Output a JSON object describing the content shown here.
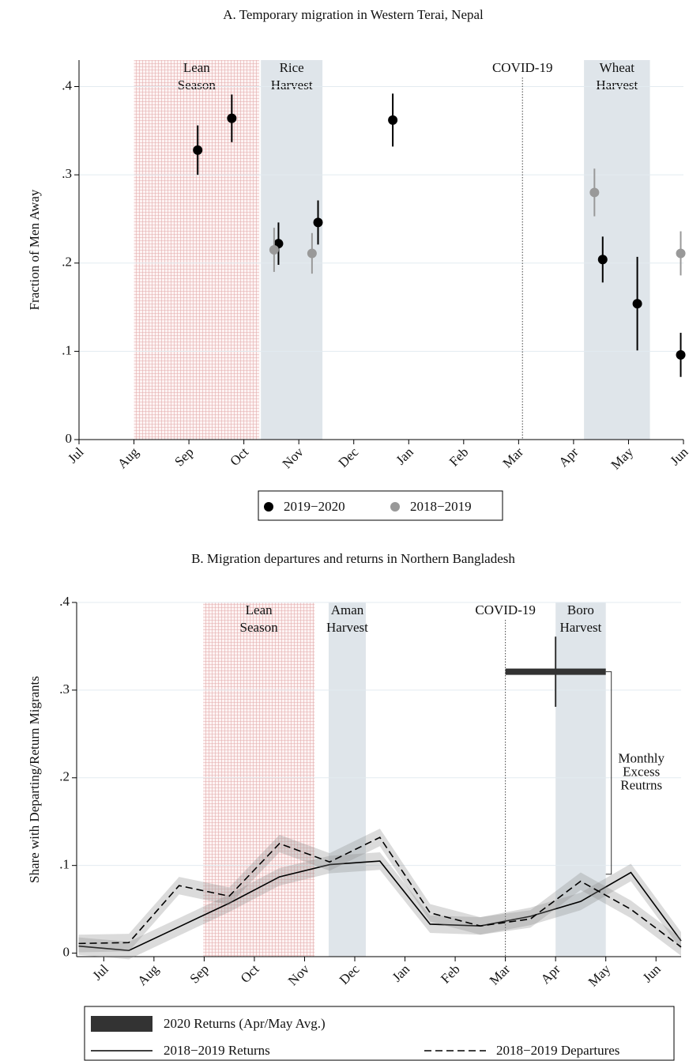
{
  "chart_data": [
    {
      "type": "scatter",
      "title": "A. Temporary migration in Western Terai, Nepal",
      "ylabel": "Fraction of Men Away",
      "xlim": [
        0,
        11
      ],
      "ylim": [
        0,
        0.43
      ],
      "xticks": [
        {
          "value": 0,
          "label": "Jul"
        },
        {
          "value": 1,
          "label": "Aug"
        },
        {
          "value": 2,
          "label": "Sep"
        },
        {
          "value": 3,
          "label": "Oct"
        },
        {
          "value": 4,
          "label": "Nov"
        },
        {
          "value": 5,
          "label": "Dec"
        },
        {
          "value": 6,
          "label": "Jan"
        },
        {
          "value": 7,
          "label": "Feb"
        },
        {
          "value": 8,
          "label": "Mar"
        },
        {
          "value": 9,
          "label": "Apr"
        },
        {
          "value": 10,
          "label": "May"
        },
        {
          "value": 11,
          "label": "Jun"
        }
      ],
      "yticks": [
        0,
        {
          "value": 0.1,
          "label": ".1"
        },
        {
          "value": 0.2,
          "label": ".2"
        },
        {
          "value": 0.3,
          "label": ".3"
        },
        {
          "value": 0.4,
          "label": ".4"
        }
      ],
      "grid": true,
      "regions": [
        {
          "range": [
            1.0,
            3.28
          ],
          "label": [
            "Lean",
            "Season"
          ],
          "color": "#d98c8c",
          "pattern": "grid"
        },
        {
          "range": [
            3.31,
            4.43
          ],
          "label": [
            "Rice",
            "Harvest"
          ],
          "color": "#dfe5ea"
        },
        {
          "range": [
            9.19,
            10.39
          ],
          "label": [
            "Wheat",
            "Harvest"
          ],
          "color": "#dfe5ea"
        }
      ],
      "vline": {
        "x": 8.07,
        "label": "COVID-19"
      },
      "series": [
        {
          "name": "2019−2020",
          "color": "#000000",
          "x": [
            2.16,
            2.78,
            3.63,
            4.35,
            5.71,
            9.53,
            10.16,
            10.95
          ],
          "values": [
            0.328,
            0.364,
            0.222,
            0.246,
            0.362,
            0.204,
            0.154,
            0.096
          ],
          "errors": [
            0.028,
            0.027,
            0.024,
            0.025,
            0.03,
            0.026,
            0.053,
            0.025
          ]
        },
        {
          "name": "2018−2019",
          "color": "#999999",
          "x": [
            3.55,
            4.24,
            9.38,
            10.95
          ],
          "values": [
            0.215,
            0.211,
            0.28,
            0.211
          ],
          "errors": [
            0.025,
            0.023,
            0.027,
            0.025
          ]
        }
      ]
    },
    {
      "type": "line",
      "title": "B. Migration departures and returns in Northern Bangladesh",
      "ylabel": "Share with Departing/Return Migrants",
      "xlim": [
        -0.54,
        11.5
      ],
      "ylim": [
        -0.004,
        0.4
      ],
      "xticks": [
        {
          "value": 0,
          "label": "Jul"
        },
        {
          "value": 1,
          "label": "Aug"
        },
        {
          "value": 2,
          "label": "Sep"
        },
        {
          "value": 3,
          "label": "Oct"
        },
        {
          "value": 4,
          "label": "Nov"
        },
        {
          "value": 5,
          "label": "Dec"
        },
        {
          "value": 6,
          "label": "Jan"
        },
        {
          "value": 7,
          "label": "Feb"
        },
        {
          "value": 8,
          "label": "Mar"
        },
        {
          "value": 9,
          "label": "Apr"
        },
        {
          "value": 10,
          "label": "May"
        },
        {
          "value": 11,
          "label": "Jun"
        }
      ],
      "yticks": [
        0,
        {
          "value": 0.1,
          "label": ".1"
        },
        {
          "value": 0.2,
          "label": ".2"
        },
        {
          "value": 0.3,
          "label": ".3"
        },
        {
          "value": 0.4,
          "label": ".4"
        }
      ],
      "grid": true,
      "regions": [
        {
          "range": [
            1.98,
            4.2
          ],
          "label": [
            "Lean",
            "Season"
          ],
          "color": "#d98c8c",
          "pattern": "grid"
        },
        {
          "range": [
            4.48,
            5.22
          ],
          "label": [
            "Aman",
            "Harvest"
          ],
          "color": "#dfe5ea"
        },
        {
          "range": [
            9.0,
            10.0
          ],
          "label": [
            "Boro",
            "Harvest"
          ],
          "color": "#dfe5ea"
        }
      ],
      "vline": {
        "x": 8.0,
        "label": "COVID-19"
      },
      "x": [
        -0.5,
        0.5,
        1.5,
        2.5,
        3.5,
        4.5,
        5.5,
        6.5,
        7.5,
        8.5,
        9.5,
        10.5,
        11.5
      ],
      "series": [
        {
          "name": "2018−2019 Returns",
          "color": "#000000",
          "style": "solid",
          "ci": 0.01,
          "values": [
            0.008,
            0.003,
            0.03,
            0.057,
            0.087,
            0.101,
            0.105,
            0.033,
            0.031,
            0.042,
            0.059,
            0.092,
            0.014
          ]
        },
        {
          "name": "2018−2019 Departures",
          "color": "#000000",
          "style": "dashed",
          "ci": 0.01,
          "values": [
            0.011,
            0.012,
            0.077,
            0.065,
            0.125,
            0.104,
            0.132,
            0.046,
            0.031,
            0.039,
            0.082,
            0.05,
            0.007
          ]
        }
      ],
      "estimate": {
        "name": "2020 Returns (Apr/May Avg.)",
        "color": "#333333",
        "x": [
          8,
          10
        ],
        "value": 0.321,
        "error": 0.04
      },
      "bracket": {
        "bottom": 0.09,
        "label": [
          "Monthly",
          "Excess",
          "Reutrns"
        ]
      }
    }
  ]
}
